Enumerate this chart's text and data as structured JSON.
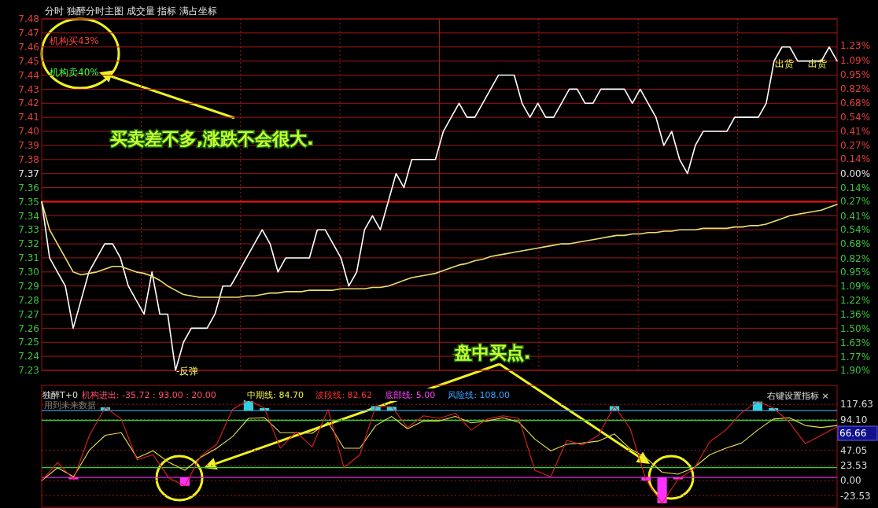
{
  "chart_data": [
    {
      "type": "line",
      "title": "分时 独醉分时主图 成交量 指标 满占坐标",
      "categories": [
        null,
        null,
        null,
        null,
        null,
        null,
        null,
        null,
        null,
        null,
        null,
        null,
        null,
        null,
        null,
        null,
        null,
        null,
        null,
        null,
        null,
        null,
        null,
        null,
        null,
        null,
        null,
        null,
        null,
        null,
        null,
        null,
        null,
        null,
        null,
        null,
        null,
        null,
        null,
        null,
        null,
        null,
        null,
        null,
        null,
        null,
        null,
        null,
        null,
        null,
        null,
        null,
        null,
        null,
        null,
        null,
        null,
        null,
        null,
        null,
        null,
        null,
        null,
        null,
        null,
        null,
        null,
        null,
        null,
        null,
        null,
        null,
        null,
        null,
        null,
        null,
        null,
        null,
        null,
        null,
        null,
        null,
        null,
        null,
        null,
        null,
        null,
        null,
        null,
        null,
        null,
        null,
        null,
        null,
        null,
        null,
        null,
        null,
        null,
        null,
        null,
        null
      ],
      "series": [
        {
          "color": "#ffffff",
          "values": [
            7.35,
            7.31,
            7.3,
            7.29,
            7.26,
            7.28,
            7.3,
            7.31,
            7.32,
            7.32,
            7.31,
            7.29,
            7.28,
            7.27,
            7.3,
            7.27,
            7.27,
            7.23,
            7.25,
            7.26,
            7.26,
            7.26,
            7.27,
            7.29,
            7.29,
            7.3,
            7.31,
            7.32,
            7.33,
            7.32,
            7.3,
            7.31,
            7.31,
            7.31,
            7.31,
            7.33,
            7.33,
            7.32,
            7.31,
            7.29,
            7.3,
            7.33,
            7.34,
            7.33,
            7.35,
            7.37,
            7.36,
            7.38,
            7.38,
            7.38,
            7.38,
            7.4,
            7.41,
            7.42,
            7.41,
            7.41,
            7.42,
            7.43,
            7.44,
            7.44,
            7.44,
            7.42,
            7.41,
            7.42,
            7.41,
            7.41,
            7.42,
            7.43,
            7.43,
            7.42,
            7.42,
            7.43,
            7.43,
            7.43,
            7.43,
            7.42,
            7.43,
            7.42,
            7.41,
            7.39,
            7.4,
            7.38,
            7.37,
            7.39,
            7.4,
            7.4,
            7.4,
            7.4,
            7.41,
            7.41,
            7.41,
            7.41,
            7.42,
            7.45,
            7.46,
            7.46,
            7.45,
            7.45,
            7.45,
            7.45,
            7.46,
            7.45
          ]
        },
        {
          "color": "#e8e070",
          "values": [
            7.35,
            7.33,
            7.32,
            7.31,
            7.3,
            7.298,
            7.299,
            7.3,
            7.302,
            7.304,
            7.304,
            7.302,
            7.3,
            7.299,
            7.297,
            7.294,
            7.29,
            7.287,
            7.284,
            7.283,
            7.282,
            7.282,
            7.282,
            7.282,
            7.282,
            7.282,
            7.283,
            7.283,
            7.284,
            7.285,
            7.285,
            7.286,
            7.286,
            7.286,
            7.287,
            7.287,
            7.287,
            7.287,
            7.288,
            7.288,
            7.288,
            7.288,
            7.289,
            7.289,
            7.29,
            7.292,
            7.294,
            7.296,
            7.297,
            7.298,
            7.299,
            7.301,
            7.303,
            7.305,
            7.306,
            7.308,
            7.309,
            7.311,
            7.312,
            7.313,
            7.314,
            7.315,
            7.316,
            7.317,
            7.318,
            7.319,
            7.32,
            7.32,
            7.321,
            7.322,
            7.323,
            7.324,
            7.325,
            7.326,
            7.326,
            7.327,
            7.327,
            7.328,
            7.328,
            7.329,
            7.329,
            7.33,
            7.33,
            7.33,
            7.331,
            7.331,
            7.331,
            7.331,
            7.332,
            7.332,
            7.333,
            7.333,
            7.334,
            7.336,
            7.338,
            7.34,
            7.341,
            7.342,
            7.343,
            7.344,
            7.346,
            7.348
          ]
        }
      ],
      "ylim": [
        7.23,
        7.48
      ],
      "yticks": [
        7.23,
        7.24,
        7.25,
        7.26,
        7.27,
        7.28,
        7.29,
        {
          "value": 7.3,
          "label": "7.30"
        },
        7.31,
        7.32,
        7.33,
        7.34,
        7.35,
        7.36,
        7.37,
        7.38,
        7.39,
        {
          "value": 7.4,
          "label": "7.40"
        },
        7.41,
        7.42,
        7.43,
        7.44,
        7.45,
        7.46,
        7.47,
        7.48
      ],
      "y2lim": [
        -1.9,
        1.49
      ],
      "y2ticks": [
        {
          "value": -1.9,
          "label": "1.90%"
        },
        {
          "value": -1.77,
          "label": "1.77%"
        },
        {
          "value": -1.63,
          "label": "1.63%"
        },
        {
          "value": -1.5,
          "label": "1.50%"
        },
        {
          "value": -1.36,
          "label": "1.36%"
        },
        {
          "value": -1.22,
          "label": "1.22%"
        },
        {
          "value": -1.09,
          "label": "1.09%"
        },
        {
          "value": -0.95,
          "label": "0.95%"
        },
        {
          "value": -0.82,
          "label": "0.82%"
        },
        {
          "value": -0.68,
          "label": "0.68%"
        },
        {
          "value": -0.54,
          "label": "0.54%"
        },
        {
          "value": -0.41,
          "label": "0.41%"
        },
        {
          "value": -0.27,
          "label": "0.27%"
        },
        {
          "value": -0.14,
          "label": "0.14%"
        },
        {
          "value": 0,
          "label": "0.00%"
        },
        {
          "value": 0.14,
          "label": "0.14%"
        },
        {
          "value": 0.27,
          "label": "0.27%"
        },
        {
          "value": 0.41,
          "label": "0.41%"
        },
        {
          "value": 0.54,
          "label": "0.54%"
        },
        {
          "value": 0.68,
          "label": "0.68%"
        },
        {
          "value": 0.82,
          "label": "0.82%"
        },
        {
          "value": 0.95,
          "label": "0.95%"
        },
        {
          "value": 1.09,
          "label": "1.09%"
        },
        {
          "value": 1.23,
          "label": "1.23%"
        }
      ],
      "ref_lines": [
        {
          "axis": "y",
          "value": 7.35,
          "color": "#ff1010"
        }
      ],
      "grid": true,
      "annotations": [
        "机构买43%",
        "机构卖40%",
        "买卖差不多,涨跌不会很大.",
        "-反弹",
        "出货",
        "出货",
        "盘中买点."
      ]
    },
    {
      "type": "line",
      "title": "独醉T+0",
      "categories": [
        null,
        null,
        null,
        null,
        null,
        null,
        null,
        null,
        null,
        null,
        null,
        null,
        null,
        null,
        null,
        null,
        null,
        null,
        null,
        null,
        null,
        null,
        null,
        null,
        null,
        null,
        null,
        null,
        null,
        null,
        null,
        null,
        null,
        null,
        null,
        null,
        null,
        null,
        null,
        null,
        null,
        null,
        null,
        null,
        null,
        null,
        null,
        null,
        null,
        null,
        null
      ],
      "series": [
        {
          "type": "bar",
          "color": "#30d0e0",
          "base": [
            null,
            null,
            null,
            null,
            108,
            null,
            null,
            null,
            null,
            null,
            null,
            null,
            null,
            108,
            108,
            null,
            null,
            null,
            null,
            null,
            null,
            108,
            108,
            null,
            null,
            null,
            null,
            null,
            null,
            null,
            null,
            null,
            null,
            null,
            null,
            null,
            108,
            null,
            null,
            null,
            null,
            null,
            null,
            null,
            null,
            108,
            108,
            null,
            null,
            null,
            null
          ],
          "values": [
            null,
            null,
            null,
            null,
            5,
            null,
            null,
            null,
            null,
            null,
            null,
            null,
            null,
            16,
            4,
            null,
            null,
            null,
            null,
            null,
            null,
            7,
            6,
            null,
            null,
            null,
            null,
            null,
            null,
            null,
            null,
            null,
            null,
            null,
            null,
            null,
            7,
            null,
            null,
            null,
            null,
            null,
            null,
            null,
            null,
            14,
            4,
            null,
            null,
            null,
            null
          ]
        },
        {
          "type": "bar",
          "color": "#ff30ff",
          "base": [
            null,
            null,
            5,
            null,
            null,
            null,
            null,
            null,
            null,
            5,
            null,
            null,
            null,
            null,
            null,
            null,
            null,
            null,
            null,
            null,
            null,
            null,
            null,
            null,
            null,
            null,
            null,
            null,
            null,
            null,
            null,
            null,
            null,
            null,
            null,
            null,
            null,
            null,
            5,
            5,
            5,
            null,
            null,
            null,
            null,
            null,
            null,
            null,
            null,
            null,
            null
          ],
          "values": [
            null,
            null,
            -3,
            null,
            null,
            null,
            null,
            null,
            null,
            -13,
            null,
            null,
            null,
            null,
            null,
            null,
            null,
            null,
            null,
            null,
            null,
            null,
            null,
            null,
            null,
            null,
            null,
            null,
            null,
            null,
            null,
            null,
            null,
            null,
            null,
            null,
            null,
            null,
            -5,
            -40,
            -3,
            null,
            null,
            null,
            null,
            null,
            null,
            null,
            null,
            null,
            null
          ]
        },
        {
          "color": "#e8e050",
          "values": [
            0,
            20,
            6,
            47,
            70,
            74,
            35,
            46,
            28,
            16,
            36,
            50,
            68,
            96,
            97,
            74,
            74,
            73,
            90,
            50,
            50,
            85,
            99,
            80,
            92,
            92,
            99,
            89,
            92,
            97,
            90,
            64,
            46,
            56,
            58,
            61,
            72,
            49,
            35,
            13,
            10,
            20,
            40,
            50,
            58,
            78,
            95,
            97,
            85,
            82,
            85
          ]
        },
        {
          "color": "#e02020",
          "values": [
            0,
            28,
            2,
            70,
            113,
            95,
            32,
            40,
            4,
            -8,
            38,
            56,
            110,
            124,
            112,
            50,
            75,
            52,
            110,
            20,
            40,
            115,
            114,
            82,
            100,
            96,
            104,
            78,
            95,
            100,
            96,
            16,
            6,
            62,
            55,
            70,
            115,
            80,
            0,
            -35,
            2,
            18,
            60,
            78,
            105,
            122,
            112,
            90,
            57,
            70,
            83
          ]
        }
      ],
      "ylim": [
        -41,
        147
      ],
      "yticks": [
        -23.53,
        {
          "value": 0,
          "label": "0.00"
        },
        23.53,
        47.05,
        {
          "value": 94.1,
          "label": "94.10"
        },
        117.63
      ],
      "ref_lines": [
        {
          "axis": "y",
          "value": 108,
          "color": "#3a9ad8"
        },
        {
          "axis": "y",
          "value": 93,
          "color": "#30d030"
        },
        {
          "axis": "y",
          "value": 20,
          "color": "#30d030"
        },
        {
          "axis": "y",
          "value": 5,
          "color": "#e020e0"
        }
      ],
      "grid": "y",
      "annotations": [
        "机构进出: -35.72 : 93.00 : 20.00",
        "中期线: 84.70",
        "波段线: 82.62",
        "底部线: 5.00",
        "风险线: 108.00",
        "用到未来数据",
        "右键设置指标 ×",
        "66.66"
      ]
    }
  ]
}
